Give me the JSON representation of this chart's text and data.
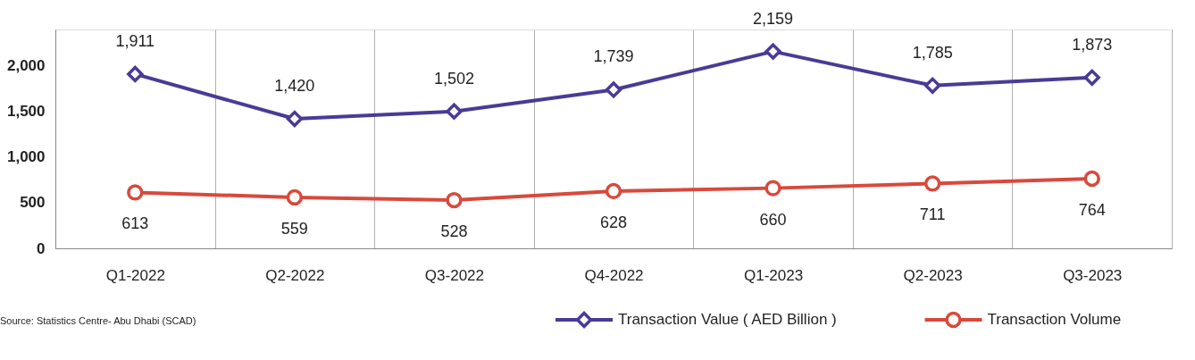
{
  "chart_data": {
    "type": "line",
    "categories": [
      "Q1-2022",
      "Q2-2022",
      "Q3-2022",
      "Q4-2022",
      "Q1-2023",
      "Q2-2023",
      "Q3-2023"
    ],
    "series": [
      {
        "name": "Transaction Value ( AED Billion )",
        "color": "#4b3a96",
        "marker": "diamond",
        "values": [
          1911,
          1420,
          1502,
          1739,
          2159,
          1785,
          1873
        ],
        "value_labels": [
          "1,911",
          "1,420",
          "1,502",
          "1,739",
          "2,159",
          "1,785",
          "1,873"
        ]
      },
      {
        "name": "Transaction Volume",
        "color": "#d9493b",
        "marker": "circle",
        "values": [
          613,
          559,
          528,
          628,
          660,
          711,
          764
        ],
        "value_labels": [
          "613",
          "559",
          "528",
          "628",
          "660",
          "711",
          "764"
        ]
      }
    ],
    "ylim": [
      0,
      2400
    ],
    "yticks": [
      0,
      500,
      {
        "value": 1000,
        "label": "1,000"
      },
      {
        "value": 1500,
        "label": "1,500"
      },
      {
        "value": 2000,
        "label": "2,000"
      }
    ],
    "grid": "x",
    "legend": "bottom right",
    "data_labels": true,
    "annotations": [
      "Source: Statistics Centre- Abu Dhabi (SCAD)"
    ]
  }
}
